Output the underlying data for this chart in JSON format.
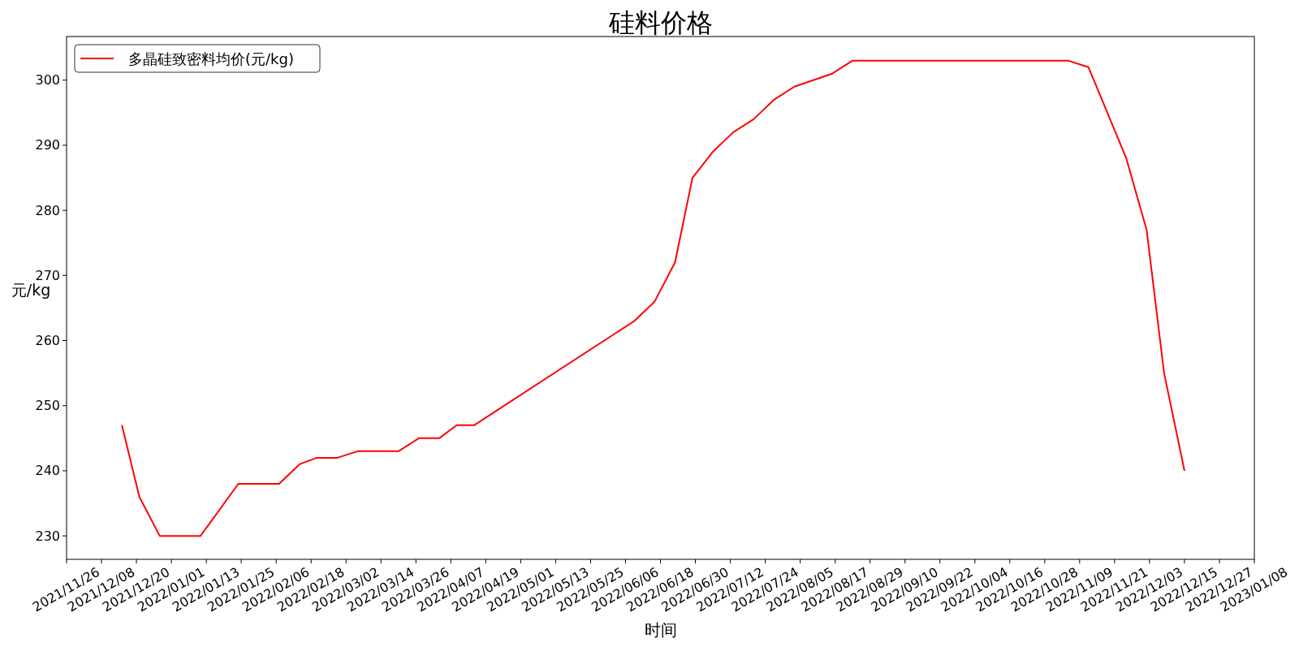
{
  "chart_data": {
    "type": "line",
    "title": "硅料价格",
    "xlabel": "时间",
    "ylabel": "元/kg",
    "x": [
      "2021-12-15",
      "2021-12-21",
      "2021-12-28",
      "2022-01-11",
      "2022-01-24",
      "2022-02-07",
      "2022-02-14",
      "2022-02-20",
      "2022-02-27",
      "2022-03-06",
      "2022-03-20",
      "2022-03-27",
      "2022-04-03",
      "2022-04-09",
      "2022-04-15",
      "2022-06-09",
      "2022-06-16",
      "2022-06-23",
      "2022-06-29",
      "2022-07-06",
      "2022-07-13",
      "2022-07-20",
      "2022-07-27",
      "2022-08-03",
      "2022-08-16",
      "2022-08-23",
      "2022-11-05",
      "2022-11-12",
      "2022-11-25",
      "2022-12-02",
      "2022-12-08",
      "2022-12-15"
    ],
    "series": [
      {
        "name": "多晶硅致密料均价(元/kg)",
        "color": "#ff0000",
        "values": [
          247,
          236,
          230,
          230,
          238,
          238,
          241,
          242,
          242,
          243,
          243,
          245,
          245,
          247,
          247,
          263,
          266,
          272,
          285,
          289,
          292,
          294,
          297,
          299,
          301,
          303,
          303,
          302,
          288,
          277,
          255,
          240
        ]
      }
    ],
    "xlim": [
      "2021-11-26",
      "2023-01-08"
    ],
    "ylim": [
      226.4,
      306.7
    ],
    "xticks": [
      {
        "value": "2021-11-26",
        "label": "2021/11/26"
      },
      {
        "value": "2021-12-08",
        "label": "2021/12/08"
      },
      {
        "value": "2021-12-20",
        "label": "2021/12/20"
      },
      {
        "value": "2022-01-01",
        "label": "2022/01/01"
      },
      {
        "value": "2022-01-13",
        "label": "2022/01/13"
      },
      {
        "value": "2022-01-25",
        "label": "2022/01/25"
      },
      {
        "value": "2022-02-06",
        "label": "2022/02/06"
      },
      {
        "value": "2022-02-18",
        "label": "2022/02/18"
      },
      {
        "value": "2022-03-02",
        "label": "2022/03/02"
      },
      {
        "value": "2022-03-14",
        "label": "2022/03/14"
      },
      {
        "value": "2022-03-26",
        "label": "2022/03/26"
      },
      {
        "value": "2022-04-07",
        "label": "2022/04/07"
      },
      {
        "value": "2022-04-19",
        "label": "2022/04/19"
      },
      {
        "value": "2022-05-01",
        "label": "2022/05/01"
      },
      {
        "value": "2022-05-13",
        "label": "2022/05/13"
      },
      {
        "value": "2022-05-25",
        "label": "2022/05/25"
      },
      {
        "value": "2022-06-06",
        "label": "2022/06/06"
      },
      {
        "value": "2022-06-18",
        "label": "2022/06/18"
      },
      {
        "value": "2022-06-30",
        "label": "2022/06/30"
      },
      {
        "value": "2022-07-12",
        "label": "2022/07/12"
      },
      {
        "value": "2022-07-24",
        "label": "2022/07/24"
      },
      {
        "value": "2022-08-05",
        "label": "2022/08/05"
      },
      {
        "value": "2022-08-17",
        "label": "2022/08/17"
      },
      {
        "value": "2022-08-29",
        "label": "2022/08/29"
      },
      {
        "value": "2022-09-10",
        "label": "2022/09/10"
      },
      {
        "value": "2022-09-22",
        "label": "2022/09/22"
      },
      {
        "value": "2022-10-04",
        "label": "2022/10/04"
      },
      {
        "value": "2022-10-16",
        "label": "2022/10/16"
      },
      {
        "value": "2022-10-28",
        "label": "2022/10/28"
      },
      {
        "value": "2022-11-09",
        "label": "2022/11/09"
      },
      {
        "value": "2022-11-21",
        "label": "2022/11/21"
      },
      {
        "value": "2022-12-03",
        "label": "2022/12/03"
      },
      {
        "value": "2022-12-15",
        "label": "2022/12/15"
      },
      {
        "value": "2022-12-27",
        "label": "2022/12/27"
      },
      {
        "value": "2023-01-08",
        "label": "2023/01/08"
      }
    ],
    "yticks": [
      230,
      240,
      250,
      260,
      270,
      280,
      290,
      300
    ],
    "grid": false,
    "legend": "top left",
    "marker": "none",
    "line_style": "solid"
  }
}
